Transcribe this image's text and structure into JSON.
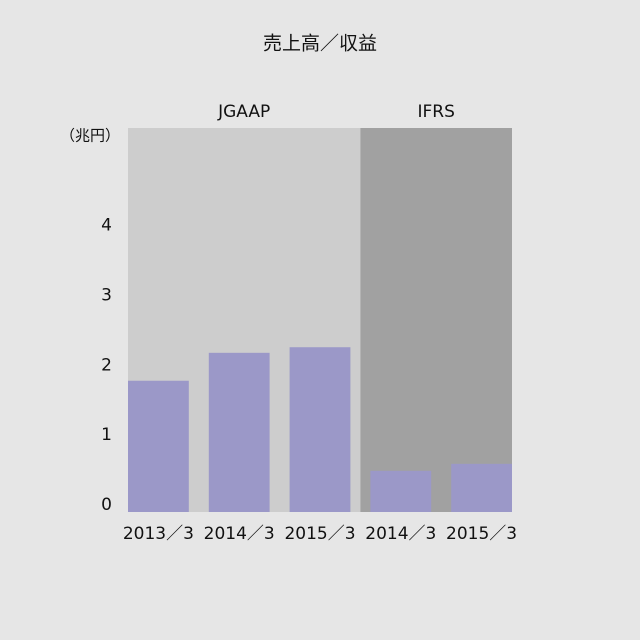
{
  "chart_data": {
    "type": "bar",
    "title": "売上高／収益",
    "y_label": "（兆円）",
    "categories": [
      "2013／3",
      "2014／3",
      "2015／3",
      "2014／3",
      "2015／3"
    ],
    "values": [
      1.88,
      2.28,
      2.36,
      0.59,
      0.69
    ],
    "color": "#9b98c8",
    "groups": [
      {
        "name": "JGAAP",
        "count": 3,
        "color": "#cdcdcd"
      },
      {
        "name": "IFRS",
        "count": 2,
        "color": "#a1a1a1"
      }
    ],
    "ylim": [
      0,
      5.5
    ],
    "yticks": [
      0,
      1,
      2,
      3,
      4
    ],
    "grid": false
  }
}
